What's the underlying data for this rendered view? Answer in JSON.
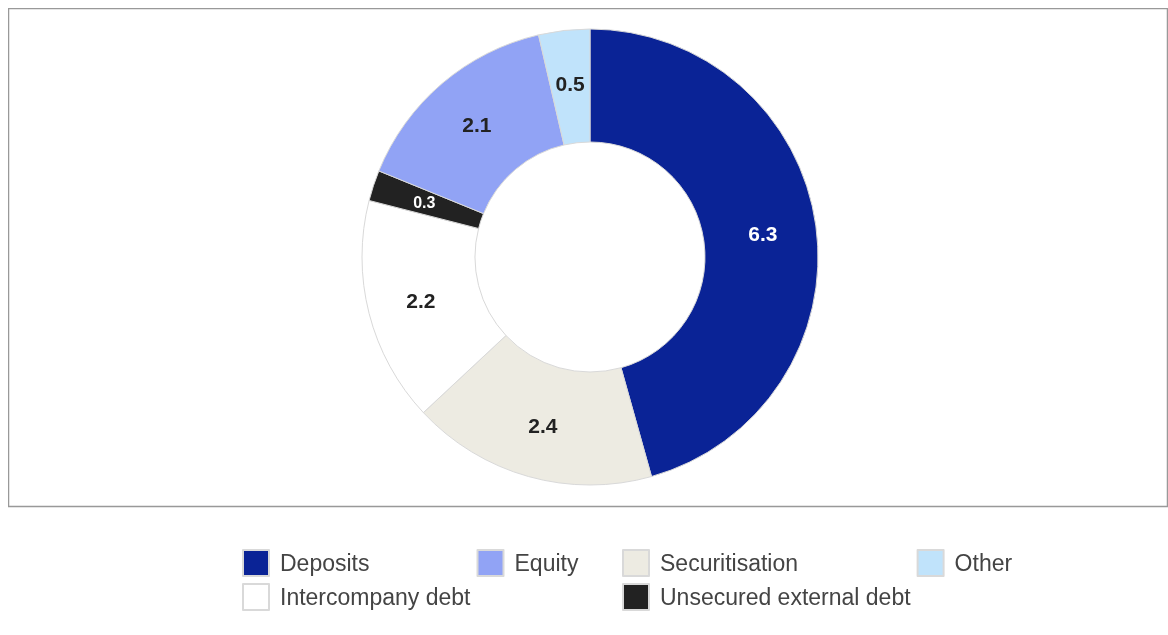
{
  "chart_data": {
    "type": "donut",
    "categories": [
      "Deposits",
      "Securitisation",
      "Intercompany debt",
      "Unsecured external debt",
      "Equity",
      "Other"
    ],
    "values": [
      6.3,
      2.4,
      2.2,
      0.3,
      2.1,
      0.5
    ],
    "colors": [
      "#0a2396",
      "#edebe2",
      "#ffffff",
      "#222222",
      "#91a3f5",
      "#c0e3fb"
    ],
    "data_labels": true,
    "legend": "bottom"
  }
}
